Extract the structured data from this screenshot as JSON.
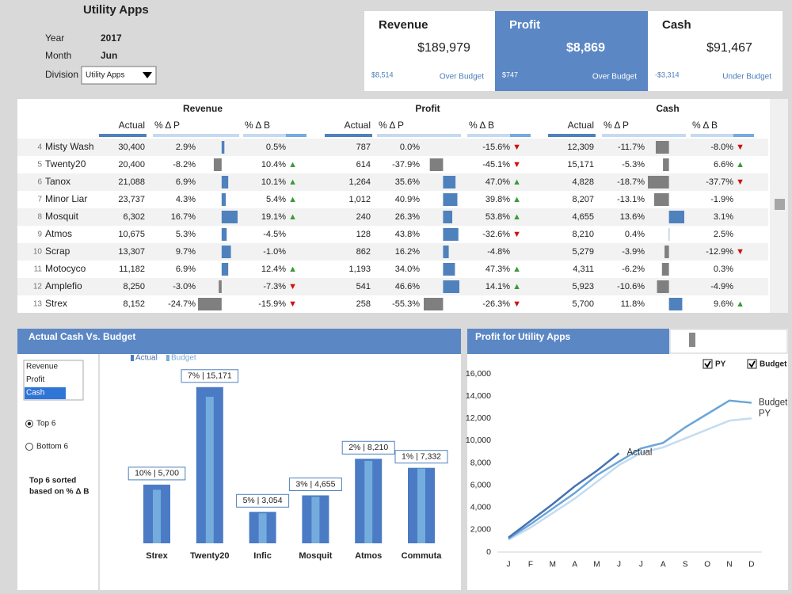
{
  "header": {
    "title": "Utility Apps",
    "fields": [
      {
        "label": "Year",
        "value": "2017"
      },
      {
        "label": "Month",
        "value": "Jun"
      },
      {
        "label": "Division",
        "value": "Utility Apps"
      }
    ]
  },
  "kpis": [
    {
      "title": "Revenue",
      "value": "$189,979",
      "variance": "$8,514",
      "status": "Over Budget"
    },
    {
      "title": "Profit",
      "value": "$8,869",
      "variance": "$747",
      "status": "Over Budget"
    },
    {
      "title": "Cash",
      "value": "$91,467",
      "variance": "-$3,314",
      "status": "Under Budget"
    }
  ],
  "table": {
    "groups": [
      "Revenue",
      "Profit",
      "Cash"
    ],
    "columns": [
      "Actual",
      "% Δ P",
      "% Δ B"
    ],
    "rows": [
      {
        "rank": "4",
        "name": "Misty Wash",
        "cells": [
          "30,400",
          "2.9%",
          "0.5%",
          "787",
          "0.0%",
          "-15.6% ▼",
          "12,309",
          "-11.7%",
          "-8.0% ▼"
        ]
      },
      {
        "rank": "5",
        "name": "Twenty20",
        "cells": [
          "20,400",
          "-8.2%",
          "10.4% ▲",
          "614",
          "-37.9%",
          "-45.1% ▼",
          "15,171",
          "-5.3%",
          "6.6% ▲"
        ]
      },
      {
        "rank": "6",
        "name": "Tanox",
        "cells": [
          "21,088",
          "6.9%",
          "10.1% ▲",
          "1,264",
          "35.6%",
          "47.0% ▲",
          "4,828",
          "-18.7%",
          "-37.7% ▼"
        ]
      },
      {
        "rank": "7",
        "name": "Minor Liar",
        "cells": [
          "23,737",
          "4.3%",
          "5.4% ▲",
          "1,012",
          "40.9%",
          "39.8% ▲",
          "8,207",
          "-13.1%",
          "-1.9%"
        ]
      },
      {
        "rank": "8",
        "name": "Mosquit",
        "cells": [
          "6,302",
          "16.7%",
          "19.1% ▲",
          "240",
          "26.3%",
          "53.8% ▲",
          "4,655",
          "13.6%",
          "3.1%"
        ]
      },
      {
        "rank": "9",
        "name": "Atmos",
        "cells": [
          "10,675",
          "5.3%",
          "-4.5%",
          "128",
          "43.8%",
          "-32.6% ▼",
          "8,210",
          "0.4%",
          "2.5%"
        ]
      },
      {
        "rank": "10",
        "name": "Scrap",
        "cells": [
          "13,307",
          "9.7%",
          "-1.0%",
          "862",
          "16.2%",
          "-4.8%",
          "5,279",
          "-3.9%",
          "-12.9% ▼"
        ]
      },
      {
        "rank": "11",
        "name": "Motocyco",
        "cells": [
          "11,182",
          "6.9%",
          "12.4% ▲",
          "1,193",
          "34.0%",
          "47.3% ▲",
          "4,311",
          "-6.2%",
          "0.3%"
        ]
      },
      {
        "rank": "12",
        "name": "Amplefio",
        "cells": [
          "8,250",
          "-3.0%",
          "-7.3% ▼",
          "541",
          "46.6%",
          "14.1% ▲",
          "5,923",
          "-10.6%",
          "-4.9%"
        ]
      },
      {
        "rank": "13",
        "name": "Strex",
        "cells": [
          "8,152",
          "-24.7%",
          "-15.9% ▼",
          "258",
          "-55.3%",
          "-26.3% ▼",
          "5,700",
          "11.8%",
          "9.6% ▲"
        ]
      }
    ]
  },
  "cash_panel": {
    "list": [
      "Revenue",
      "Profit",
      "Cash"
    ],
    "selected": 2,
    "options": [
      "Top 6",
      "Bottom 6"
    ],
    "option_selected": 0,
    "note": [
      "Top 6 sorted",
      "based on % Δ B"
    ]
  },
  "profit_panel": {
    "checkboxes": [
      {
        "label": "PY",
        "checked": true
      },
      {
        "label": "Budget",
        "checked": true
      }
    ]
  },
  "chart_data": [
    {
      "type": "bar",
      "title": "Actual Cash Vs. Budget",
      "categories": [
        "Strex",
        "Twenty20",
        "Infic",
        "Mosquit",
        "Atmos",
        "Commuta"
      ],
      "series": [
        {
          "name": "Actual",
          "color": "#4a7bc4",
          "values": [
            5700,
            15171,
            3054,
            4655,
            8210,
            7332
          ],
          "value_labels": [
            "10% | 5,700",
            "7% | 15,171",
            "5% | 3,054",
            "3% | 4,655",
            "2% | 8,210",
            "1% | 7,332"
          ]
        },
        {
          "name": "Budget",
          "color": "#74acde",
          "values": [
            5200,
            14230,
            2910,
            4515,
            8010,
            7260
          ]
        }
      ],
      "ylim": [
        0,
        16000
      ]
    },
    {
      "type": "line",
      "title": "Profit for Utility Apps",
      "categories": [
        "J",
        "F",
        "M",
        "A",
        "M",
        "J",
        "J",
        "A",
        "S",
        "O",
        "N",
        "D"
      ],
      "series": [
        {
          "name": "PY",
          "color": "#c4dcf0",
          "values": [
            1100,
            2200,
            3500,
            4800,
            6300,
            7800,
            8900,
            9400,
            10200,
            11000,
            11800,
            12000
          ]
        },
        {
          "name": "Budget",
          "color": "#6aa5d8",
          "values": [
            1200,
            2500,
            3900,
            5300,
            6900,
            8120,
            9300,
            9800,
            11200,
            12400,
            13600,
            13400
          ]
        },
        {
          "name": "Actual",
          "color": "#4472b4",
          "values": [
            1300,
            2800,
            4300,
            5900,
            7300,
            8869,
            null,
            null,
            null,
            null,
            null,
            null
          ]
        }
      ],
      "ylim": [
        0,
        16000
      ],
      "yticks": [
        0,
        {
          "value": 2000,
          "label": "2,000"
        },
        {
          "value": 4000,
          "label": "4,000"
        },
        {
          "value": 6000,
          "label": "6,000"
        },
        {
          "value": 8000,
          "label": "8,000"
        },
        {
          "value": 10000,
          "label": "10,000"
        },
        {
          "value": 12000,
          "label": "12,000"
        },
        {
          "value": 14000,
          "label": "14,000"
        },
        {
          "value": 16000,
          "label": "16,000"
        }
      ],
      "grid": false
    }
  ]
}
